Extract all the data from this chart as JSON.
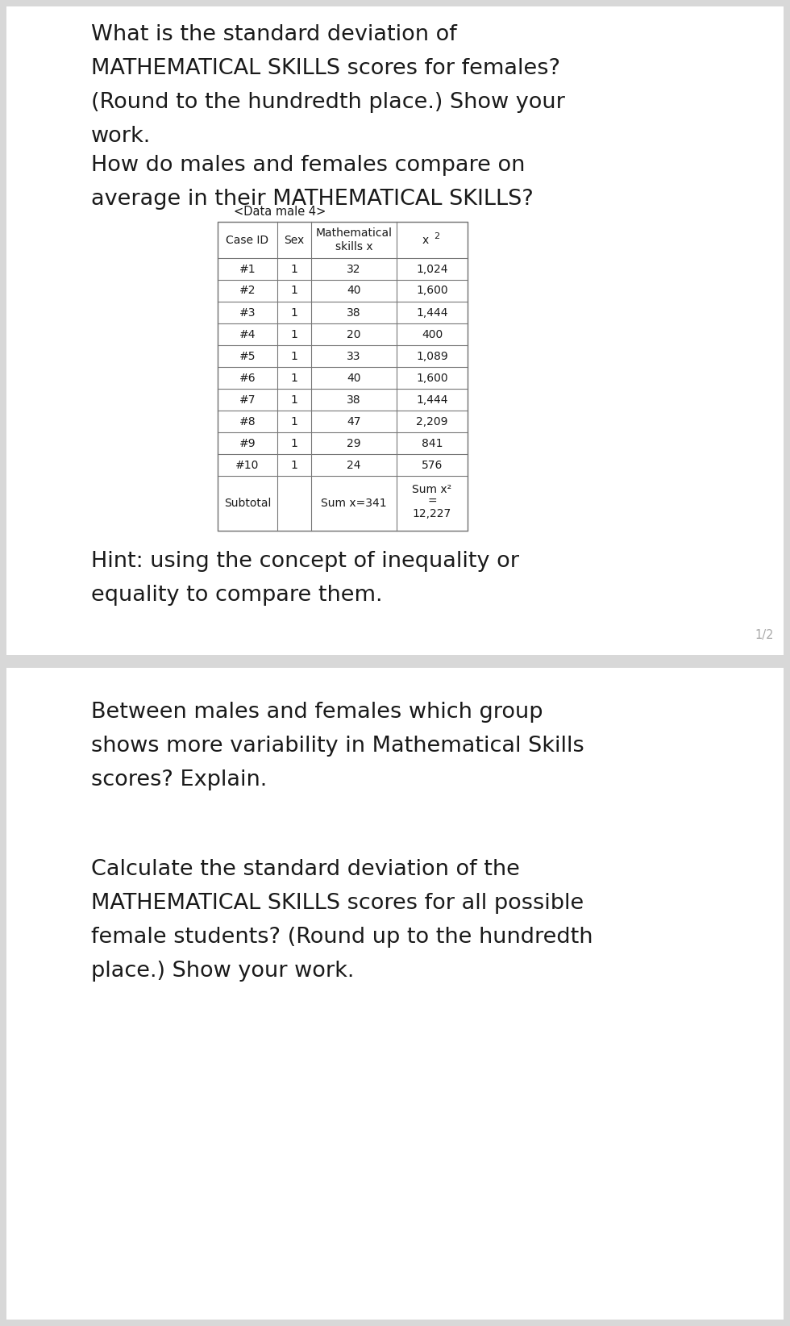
{
  "bg_color": "#d8d8d8",
  "page_bg": "#ffffff",
  "page1_bg": "#f2f2f2",
  "text_color": "#1a1a1a",
  "table_border_color": "#777777",
  "hint_color": "#999999",
  "q1_text": "What is the standard deviation of\nMATHEMATICAL SKILLS scores for females?\n(Round to the hundredth place.) Show your\nwork.",
  "q2_text": "How do males and females compare on\naverage in their MATHEMATICAL SKILLS?",
  "table_caption": "<Data male 4>",
  "table_col0_header": "Case ID",
  "table_col1_header": "Sex",
  "table_col2_header": "Mathematical\nskills x",
  "table_col3_header": "x²",
  "table_rows": [
    [
      "#1",
      "1",
      "32",
      "1,024"
    ],
    [
      "#2",
      "1",
      "40",
      "1,600"
    ],
    [
      "#3",
      "1",
      "38",
      "1,444"
    ],
    [
      "#4",
      "1",
      "20",
      "400"
    ],
    [
      "#5",
      "1",
      "33",
      "1,089"
    ],
    [
      "#6",
      "1",
      "40",
      "1,600"
    ],
    [
      "#7",
      "1",
      "38",
      "1,444"
    ],
    [
      "#8",
      "1",
      "47",
      "2,209"
    ],
    [
      "#9",
      "1",
      "29",
      "841"
    ],
    [
      "#10",
      "1",
      "24",
      "576"
    ]
  ],
  "subtotal_label": "Subtotal",
  "subtotal_sumx": "Sum x=341",
  "subtotal_sumx2_line1": "Sum x²",
  "subtotal_sumx2_line2": "=",
  "subtotal_sumx2_line3": "12,227",
  "hint_text": "Hint: using the concept of inequality or\nequality to compare them.",
  "page_num": "1/2",
  "q3_text": "Between males and females which group\nshows more variability in Mathematical Skills\nscores? Explain.",
  "q4_text": "Calculate the standard deviation of the\nMATHEMATICAL SKILLS scores for all possible\nfemale students? (Round up to the hundredth\nplace.) Show your work."
}
